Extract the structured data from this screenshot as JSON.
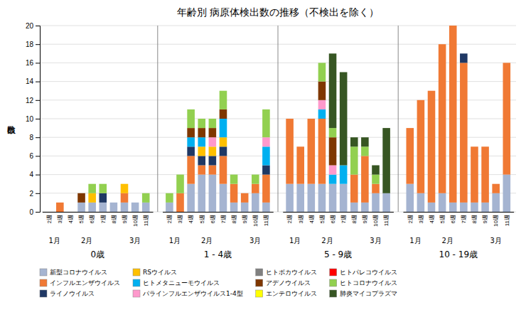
{
  "chart_data": {
    "type": "bar",
    "stacked": true,
    "title": "年齢別 病原体検出数の推移（不検出を除く）",
    "y_label": "検出数",
    "categories": [
      "2週",
      "3週",
      "4週",
      "5週",
      "6週",
      "7週",
      "8週",
      "9週",
      "10週",
      "11週",
      "2週",
      "3週",
      "4週",
      "5週",
      "6週",
      "7週",
      "8週",
      "9週",
      "10週",
      "11週",
      "2週",
      "3週",
      "4週",
      "5週",
      "6週",
      "7週",
      "8週",
      "9週",
      "10週",
      "11週",
      "2週",
      "3週",
      "4週",
      "5週",
      "6週",
      "7週",
      "8週",
      "9週",
      "10週",
      "11週"
    ],
    "groups": [
      "0歳",
      "1 - 4歳",
      "5 - 9歳",
      "10 - 19歳"
    ],
    "month_labels": [
      {
        "label": "1月",
        "weeks": [
          "2週",
          "3週"
        ]
      },
      {
        "label": "2月",
        "weeks": [
          "4週",
          "5週",
          "6週",
          "7週"
        ]
      },
      {
        "label": "3月",
        "weeks": [
          "9週",
          "10週",
          "11週"
        ]
      }
    ],
    "ylim": [
      0,
      20
    ],
    "yticks": [
      0,
      2,
      4,
      6,
      8,
      10,
      12,
      14,
      16,
      18,
      20
    ],
    "grid": true,
    "legend": "bottom",
    "series": [
      {
        "name": "新型コロナウイルス",
        "color": "#a5b4d1",
        "values": [
          0,
          0,
          0,
          1,
          1,
          1,
          1,
          1,
          1,
          1,
          1,
          0,
          3,
          4,
          4,
          3,
          1,
          1,
          2,
          1,
          3,
          3,
          3,
          3,
          3,
          3,
          1,
          1,
          2,
          2,
          3,
          2,
          1,
          2,
          1,
          1,
          1,
          1,
          2,
          4
        ]
      },
      {
        "name": "インフルエンザウイルス",
        "color": "#f07934",
        "values": [
          0,
          1,
          0,
          0,
          0,
          0,
          0,
          1,
          0,
          0,
          0,
          2,
          3,
          1,
          1,
          3,
          2,
          1,
          1,
          3,
          7,
          4,
          7,
          7,
          0,
          0,
          3,
          5,
          1,
          0,
          6,
          10,
          12,
          16,
          19,
          15,
          6,
          6,
          1,
          12
        ]
      },
      {
        "name": "ライノウイルス",
        "color": "#1f3864",
        "values": [
          0,
          0,
          0,
          0,
          0,
          1,
          0,
          0,
          0,
          0,
          0,
          0,
          1,
          1,
          1,
          1,
          0,
          0,
          0,
          1,
          0,
          0,
          0,
          0,
          0,
          0,
          0,
          0,
          0,
          0,
          0,
          0,
          0,
          0,
          0,
          1,
          0,
          0,
          0,
          0
        ]
      },
      {
        "name": "RSウイルス",
        "color": "#ffc000",
        "values": [
          0,
          0,
          0,
          0,
          1,
          0,
          0,
          1,
          0,
          0,
          0,
          0,
          0,
          1,
          1,
          1,
          0,
          0,
          0,
          0,
          0,
          0,
          0,
          0,
          0,
          0,
          0,
          0,
          0,
          0,
          0,
          0,
          0,
          0,
          0,
          0,
          0,
          0,
          0,
          0
        ]
      },
      {
        "name": "ヒトメタニューモウイルス",
        "color": "#00b0f0",
        "values": [
          0,
          0,
          0,
          0,
          0,
          0,
          0,
          0,
          0,
          0,
          0,
          0,
          1,
          1,
          0,
          2,
          0,
          0,
          0,
          2,
          0,
          0,
          0,
          1,
          1,
          2,
          0,
          0,
          0,
          0,
          0,
          0,
          0,
          0,
          0,
          0,
          0,
          0,
          0,
          0
        ]
      },
      {
        "name": "パラインフルエンザウイルス1-4型",
        "color": "#ff99cc",
        "values": [
          0,
          0,
          0,
          0,
          0,
          0,
          0,
          0,
          0,
          0,
          0,
          0,
          0,
          0,
          1,
          0,
          0,
          0,
          0,
          1,
          0,
          0,
          0,
          1,
          1,
          0,
          0,
          0,
          0,
          0,
          0,
          0,
          0,
          0,
          0,
          0,
          0,
          0,
          0,
          0
        ]
      },
      {
        "name": "ヒトボカウイルス",
        "color": "#808080",
        "values": [
          0,
          0,
          0,
          0,
          0,
          0,
          0,
          0,
          0,
          0,
          0,
          0,
          0,
          0,
          0,
          0,
          0,
          0,
          0,
          0,
          0,
          0,
          0,
          0,
          0,
          0,
          0,
          0,
          0,
          0,
          0,
          0,
          0,
          0,
          0,
          0,
          0,
          0,
          0,
          0
        ]
      },
      {
        "name": "アデノウイルス",
        "color": "#7f3700",
        "values": [
          0,
          0,
          0,
          1,
          0,
          0,
          0,
          0,
          0,
          0,
          0,
          0,
          1,
          1,
          1,
          1,
          0,
          0,
          0,
          0,
          0,
          0,
          0,
          2,
          3,
          0,
          0,
          0,
          0,
          0,
          0,
          0,
          0,
          0,
          0,
          0,
          0,
          0,
          0,
          0
        ]
      },
      {
        "name": "エンテロウイルス",
        "color": "#ffff00",
        "values": [
          0,
          0,
          0,
          0,
          0,
          0,
          0,
          0,
          0,
          0,
          0,
          0,
          0,
          0,
          0,
          0,
          0,
          0,
          0,
          0,
          0,
          0,
          0,
          0,
          0,
          0,
          0,
          0,
          0,
          0,
          0,
          0,
          0,
          0,
          0,
          0,
          0,
          0,
          0,
          0
        ]
      },
      {
        "name": "ヒトパレコウイルス",
        "color": "#ff0000",
        "values": [
          0,
          0,
          0,
          0,
          0,
          0,
          0,
          0,
          0,
          0,
          0,
          0,
          0,
          0,
          0,
          0,
          0,
          0,
          0,
          0,
          0,
          0,
          0,
          0,
          0,
          0,
          0,
          0,
          0,
          0,
          0,
          0,
          0,
          0,
          0,
          0,
          0,
          0,
          0,
          0
        ]
      },
      {
        "name": "ヒトコロナウイルス",
        "color": "#92d050",
        "values": [
          0,
          0,
          0,
          0,
          1,
          1,
          0,
          0,
          0,
          1,
          1,
          2,
          2,
          1,
          1,
          2,
          1,
          0,
          1,
          3,
          0,
          0,
          0,
          2,
          1,
          0,
          3,
          1,
          1,
          0,
          0,
          0,
          0,
          0,
          0,
          0,
          0,
          0,
          0,
          0
        ]
      },
      {
        "name": "肺炎マイコプラズマ",
        "color": "#375623",
        "values": [
          0,
          0,
          0,
          0,
          0,
          0,
          0,
          0,
          0,
          0,
          0,
          0,
          0,
          0,
          0,
          0,
          0,
          0,
          0,
          0,
          0,
          0,
          0,
          0,
          8,
          10,
          1,
          1,
          1,
          7,
          0,
          0,
          0,
          0,
          0,
          0,
          0,
          0,
          0,
          0
        ]
      }
    ]
  }
}
